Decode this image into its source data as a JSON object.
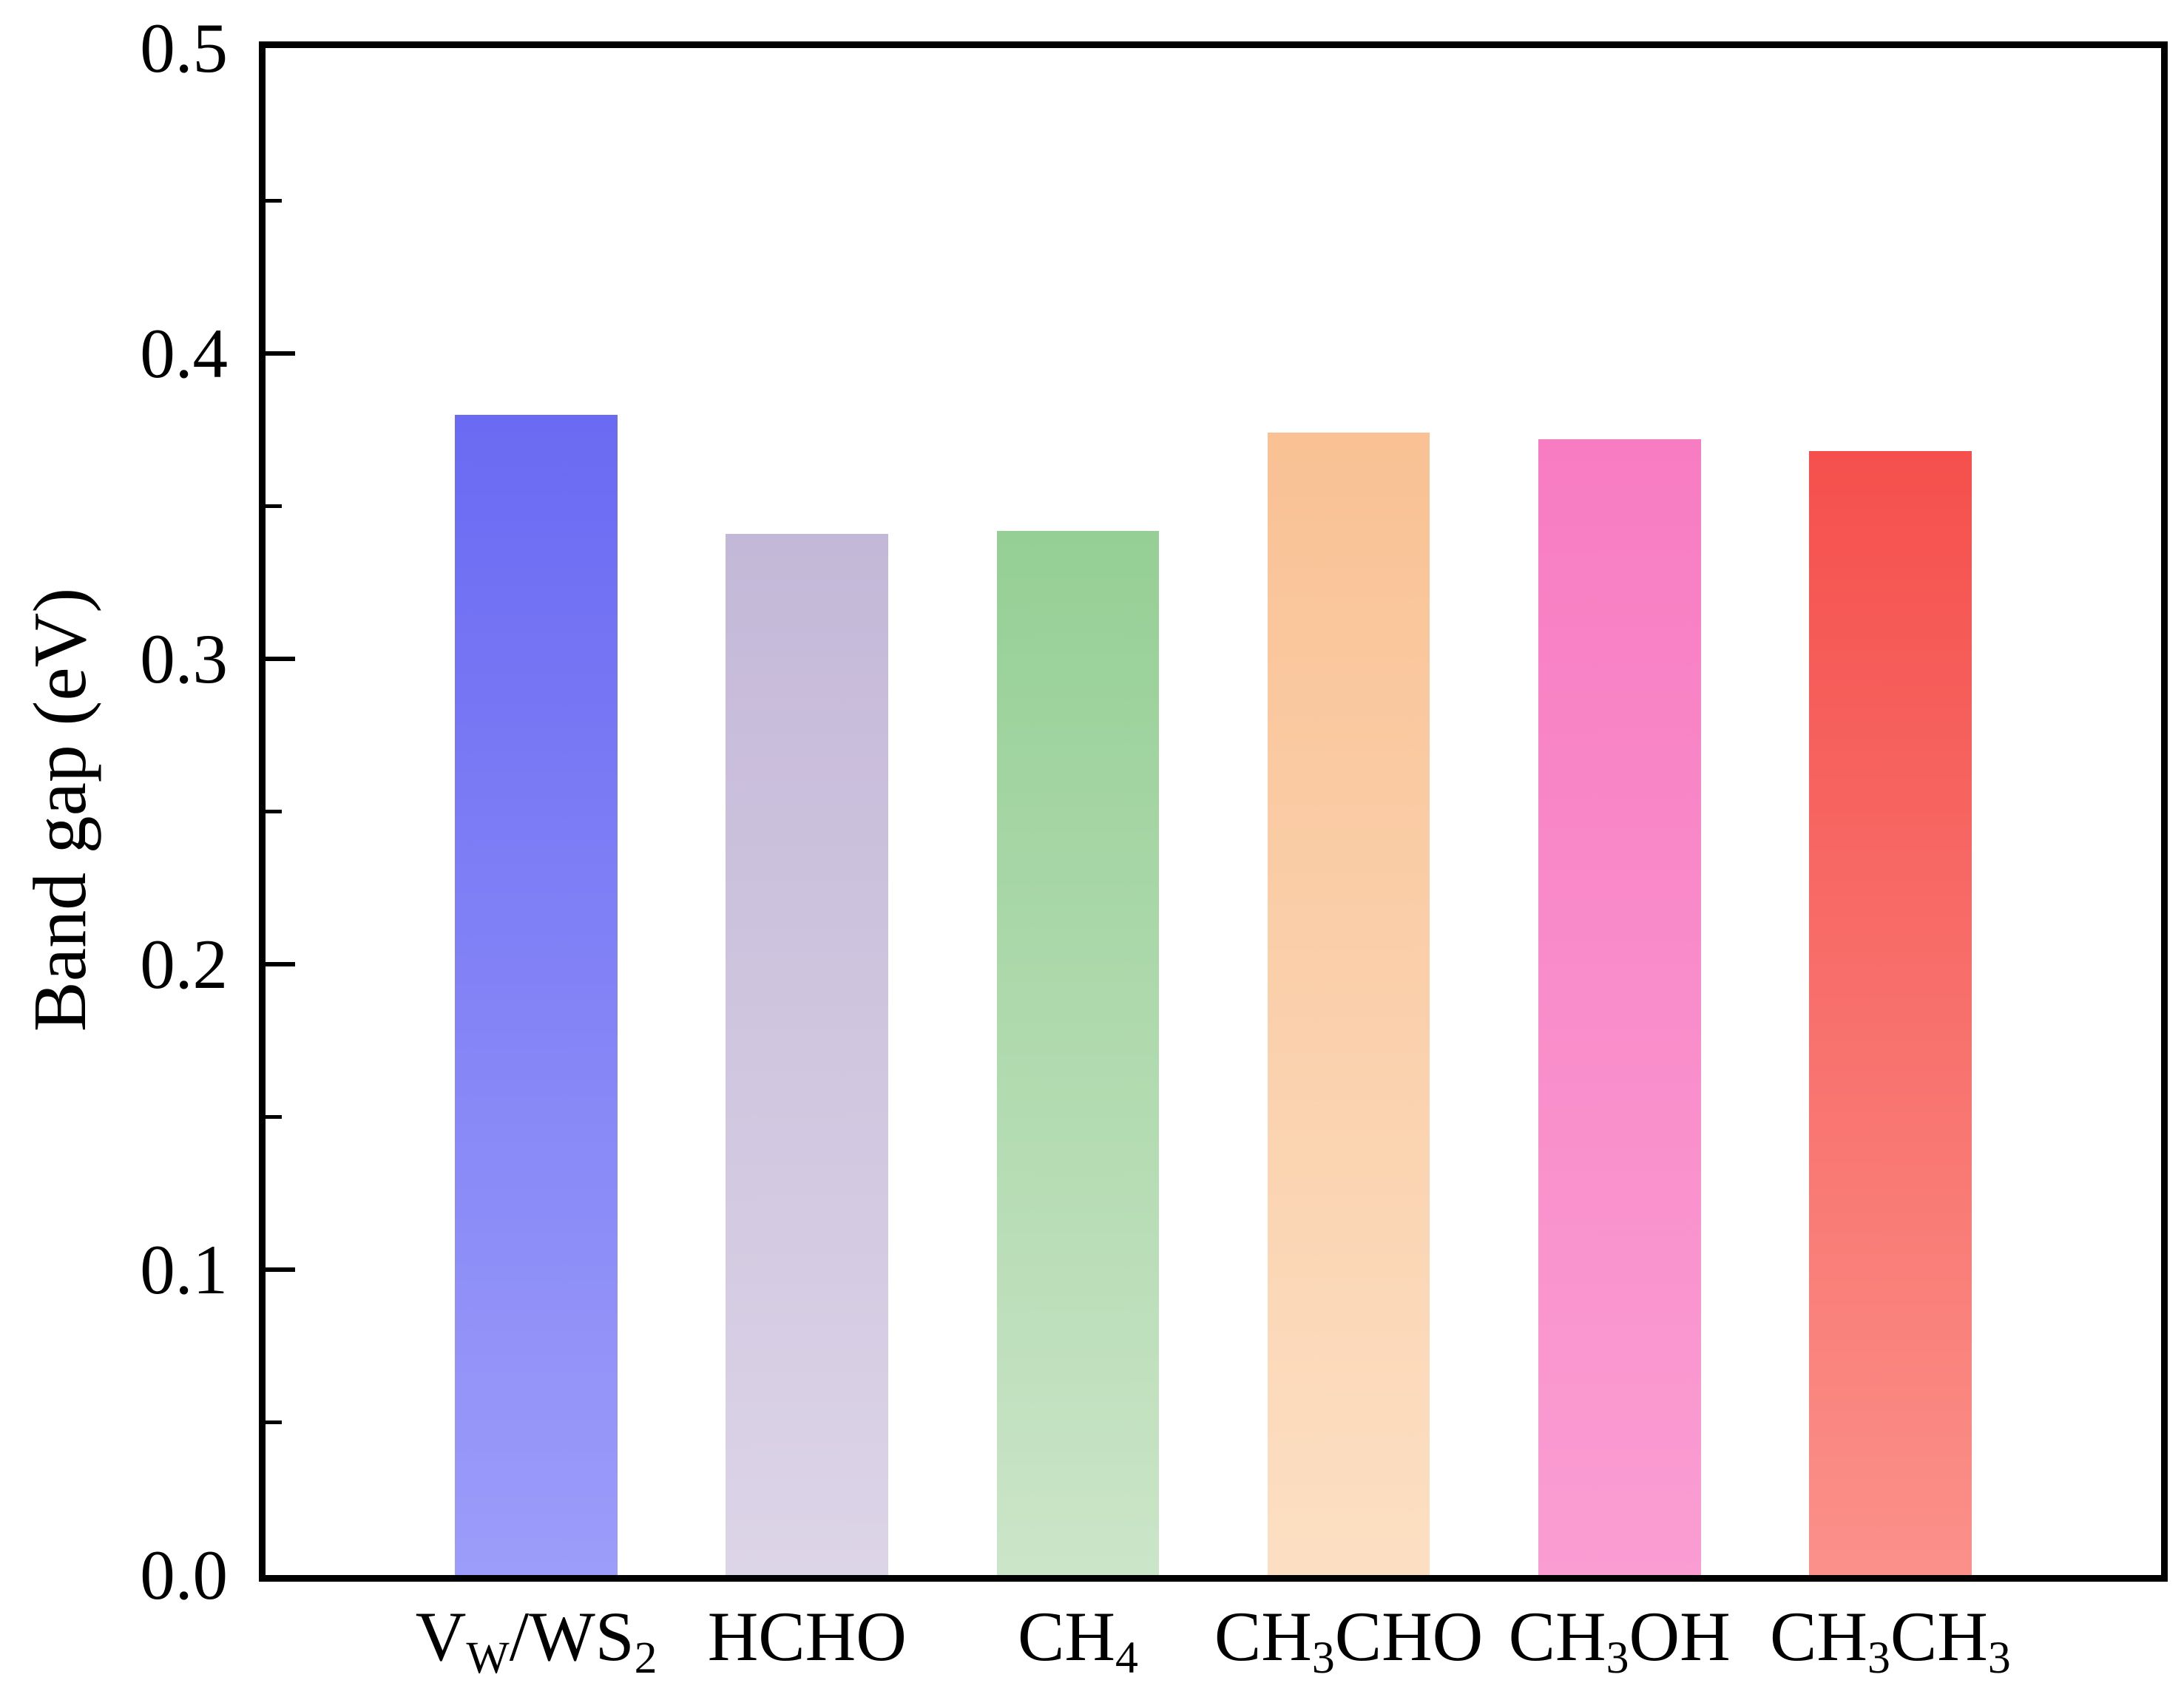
{
  "figure": {
    "background": "#ffffff",
    "frame_color": "#000000",
    "text_color": "#000000"
  },
  "chart_data": {
    "type": "bar",
    "title": "",
    "xlabel": "",
    "ylabel": "Band gap (eV)",
    "ylim": [
      0.0,
      0.5
    ],
    "yticks": [
      0.0,
      0.1,
      0.2,
      0.3,
      0.4,
      0.5
    ],
    "ytick_labels": [
      "0.0",
      "0.1",
      "0.2",
      "0.3",
      "0.4",
      "0.5"
    ],
    "minor_ytick_step": 0.05,
    "grid": false,
    "legend_position": "none",
    "categories": [
      "V_W/WS_2",
      "HCHO",
      "CH_4",
      "CH_3CHO",
      "CH_3OH",
      "CH_3CH_3"
    ],
    "subscript_marker_note": "underscore precedes a single subscript character",
    "values": [
      0.38,
      0.341,
      0.342,
      0.374,
      0.372,
      0.368
    ],
    "bar_width_fraction": 0.6,
    "bar_gradients": [
      {
        "top": "#6A6AF3",
        "bottom": "#9C9CFA"
      },
      {
        "top": "#C4B8D8",
        "bottom": "#DCD4E7"
      },
      {
        "top": "#95CF95",
        "bottom": "#CBE5C8"
      },
      {
        "top": "#F9C194",
        "bottom": "#FCDFC3"
      },
      {
        "top": "#F87CC2",
        "bottom": "#FA9DD3"
      },
      {
        "top": "#F5504D",
        "bottom": "#FB908A"
      }
    ]
  }
}
